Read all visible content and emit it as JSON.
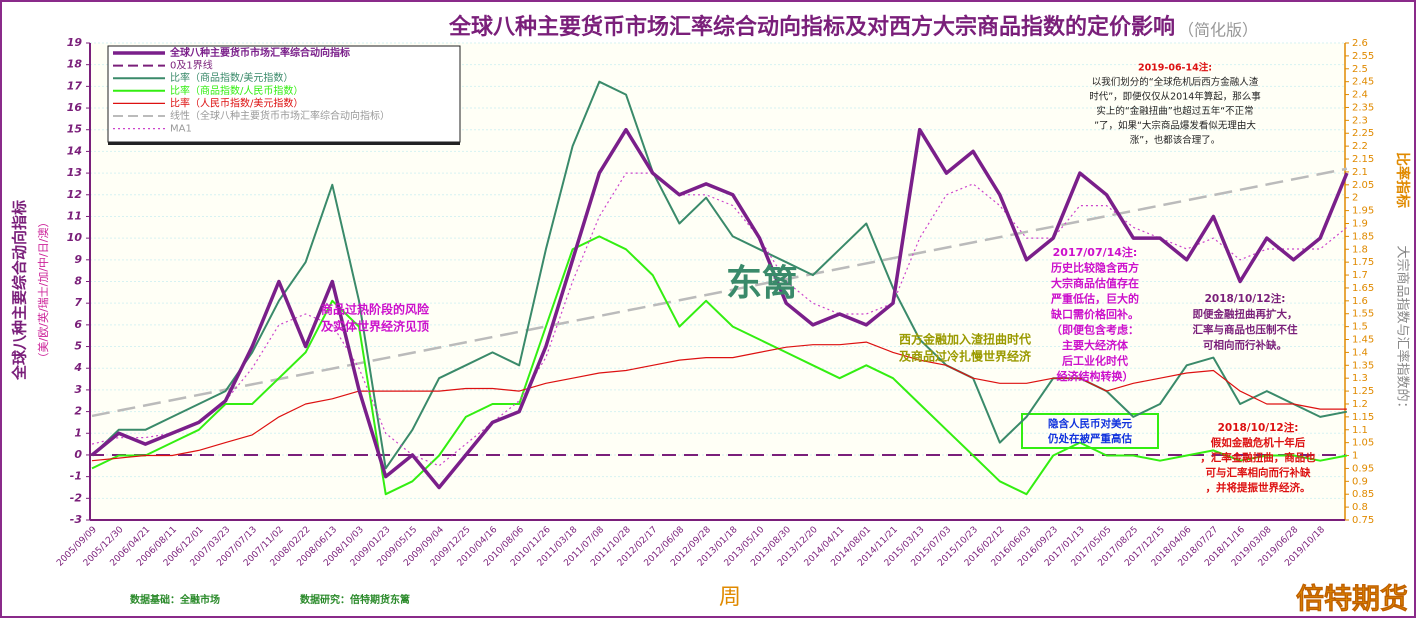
{
  "chart_data": {
    "type": "line",
    "title": "全球八种主要货币市场汇率综合动向指标及对西方大宗商品指数的定价影响",
    "subtitle": "（简化版）",
    "y_label": "全球八种主要综合动向指标",
    "y_sublabel": "（美/欧/英/瑞士/加/中/日/澳）",
    "y2_label": "大宗商品指数与汇率指数的：",
    "y2_label_emphasis": "比率指标",
    "x_label": "周",
    "categories": [
      "2005/09/09",
      "2005/12/30",
      "2006/04/21",
      "2006/08/11",
      "2006/12/01",
      "2007/03/23",
      "2007/07/13",
      "2007/11/02",
      "2008/02/22",
      "2008/06/13",
      "2008/10/03",
      "2009/01/23",
      "2009/05/15",
      "2009/09/04",
      "2009/12/25",
      "2010/04/16",
      "2010/08/06",
      "2010/11/26",
      "2011/03/18",
      "2011/07/08",
      "2011/10/28",
      "2012/02/17",
      "2012/06/08",
      "2012/09/28",
      "2013/01/18",
      "2013/05/10",
      "2013/08/30",
      "2013/12/20",
      "2014/04/11",
      "2014/08/01",
      "2014/11/21",
      "2015/03/13",
      "2015/07/03",
      "2015/10/23",
      "2016/02/12",
      "2016/06/03",
      "2016/09/23",
      "2017/01/13",
      "2017/05/05",
      "2017/08/25",
      "2017/12/15",
      "2018/04/06",
      "2018/07/27",
      "2018/11/16",
      "2019/03/08",
      "2019/06/28",
      "2019/10/18",
      null
    ],
    "series": [
      {
        "name": "全球八种主要货币市场汇率综合动向指标",
        "color": "#7a1f8a",
        "width": 3.5,
        "axis": "y",
        "values": [
          0,
          1,
          0.5,
          1,
          1.5,
          2.5,
          5,
          8,
          5,
          8,
          3,
          -1,
          0,
          -1.5,
          0,
          1.5,
          2,
          5,
          9,
          13,
          15,
          13,
          12,
          12.5,
          12,
          10,
          7,
          6,
          6.5,
          6,
          7,
          15,
          13,
          14,
          12,
          9,
          10,
          13,
          12,
          10,
          10,
          9,
          11,
          8,
          10,
          9,
          10,
          13
        ]
      },
      {
        "name": "比率（商品指数/美元指数）",
        "color": "#3a8a6a",
        "width": 2,
        "axis": "y2",
        "values": [
          1.0,
          1.1,
          1.1,
          1.15,
          1.2,
          1.25,
          1.4,
          1.6,
          1.75,
          2.05,
          1.6,
          0.95,
          1.1,
          1.3,
          1.35,
          1.4,
          1.35,
          1.8,
          2.2,
          2.45,
          2.4,
          2.1,
          1.9,
          2.0,
          1.85,
          1.8,
          1.75,
          1.7,
          1.8,
          1.9,
          1.65,
          1.45,
          1.35,
          1.3,
          1.05,
          1.15,
          1.3,
          1.3,
          1.25,
          1.15,
          1.2,
          1.35,
          1.38,
          1.2,
          1.25,
          1.2,
          1.15,
          1.17
        ]
      },
      {
        "name": "比率（商品指数/人民币指数）",
        "color": "#33ee11",
        "width": 2,
        "axis": "y2",
        "values": [
          0.95,
          1.0,
          1.0,
          1.05,
          1.1,
          1.2,
          1.2,
          1.3,
          1.4,
          1.6,
          1.5,
          0.85,
          0.9,
          1.0,
          1.15,
          1.2,
          1.2,
          1.5,
          1.8,
          1.85,
          1.8,
          1.7,
          1.5,
          1.6,
          1.5,
          1.45,
          1.4,
          1.35,
          1.3,
          1.35,
          1.3,
          1.2,
          1.1,
          1.0,
          0.9,
          0.85,
          1.0,
          1.05,
          1.0,
          1.0,
          0.98,
          1.0,
          1.02,
          0.98,
          1.0,
          1.0,
          0.98,
          1.0
        ]
      },
      {
        "name": "比率（人民币指数/美元指数）",
        "color": "#dd1111",
        "width": 1.2,
        "axis": "y2",
        "values": [
          0.98,
          0.99,
          1.0,
          1.0,
          1.02,
          1.05,
          1.08,
          1.15,
          1.2,
          1.22,
          1.25,
          1.25,
          1.25,
          1.25,
          1.26,
          1.26,
          1.25,
          1.28,
          1.3,
          1.32,
          1.33,
          1.35,
          1.37,
          1.38,
          1.38,
          1.4,
          1.42,
          1.43,
          1.43,
          1.44,
          1.4,
          1.37,
          1.35,
          1.3,
          1.28,
          1.28,
          1.3,
          1.3,
          1.25,
          1.28,
          1.3,
          1.32,
          1.33,
          1.25,
          1.2,
          1.2,
          1.18,
          1.18
        ]
      },
      {
        "name": "MA1",
        "color": "#cc44cc",
        "width": 1.2,
        "dash": "2 3",
        "axis": "y",
        "values": [
          0.5,
          0.8,
          0.8,
          1,
          1.5,
          2.5,
          4,
          6,
          6.5,
          6,
          4,
          1,
          0,
          -0.5,
          0.5,
          1.5,
          2.5,
          4.5,
          8,
          11,
          13,
          13,
          12,
          12,
          11.5,
          10,
          8,
          7,
          6.5,
          6.5,
          7,
          10,
          12,
          12.5,
          11.5,
          10,
          10,
          11.5,
          11.5,
          10.5,
          10,
          9.5,
          10,
          9,
          9.5,
          9.5,
          9.5,
          10.5
        ]
      }
    ],
    "reference_line": {
      "name": "0及1界线",
      "value": 0,
      "color": "#7a1f7a"
    },
    "trendline": {
      "name": "线性（全球八种主要货币市场汇率综合动向指标）",
      "values": [
        1.8,
        13.2
      ],
      "color": "#bbbbbb"
    },
    "ylim": [
      -3,
      19
    ],
    "yticks": [
      -3,
      -2,
      -1,
      0,
      1,
      2,
      3,
      4,
      5,
      6,
      7,
      8,
      9,
      10,
      11,
      12,
      13,
      14,
      15,
      16,
      17,
      18,
      19
    ],
    "y2lim": [
      0.75,
      2.6
    ],
    "y2ticks": [
      0.75,
      0.8,
      0.85,
      0.9,
      0.95,
      1,
      1.05,
      1.1,
      1.15,
      1.2,
      1.25,
      1.3,
      1.35,
      1.4,
      1.45,
      1.5,
      1.55,
      1.6,
      1.65,
      1.7,
      1.75,
      1.8,
      1.85,
      1.9,
      1.95,
      2,
      2.05,
      2.1,
      2.15,
      2.2,
      2.25,
      2.3,
      2.35,
      2.4,
      2.45,
      2.5,
      2.55,
      2.6
    ],
    "grid": true,
    "annotations": [
      {
        "lines": [
          "2019-06-14注:",
          "以我们划分的“全球危机后西方金融人渣",
          "时代”，即便仅仅从2014年算起，那么事",
          "实上的“金融扭曲”也超过五年“不正常",
          "”了，如果“大宗商品爆发看似无理由大",
          "涨”，也都该合理了。"
        ]
      },
      {
        "lines": [
          "东篱"
        ]
      },
      {
        "lines": [
          "2017/07/14注:",
          "历史比较隐含西方",
          "大宗商品估值存在",
          "严重低估，巨大的",
          "缺口需价格回补。",
          "（即便包含考虑：",
          "主要大经济体",
          "后工业化时代",
          "经济结构转换）"
        ]
      },
      {
        "lines": [
          "2018/10/12注:",
          "即便金融扭曲再扩大，",
          "汇率与商品也压制不住",
          "可相向而行补缺。"
        ]
      },
      {
        "lines": [
          "隐含人民币对美元",
          "仍处在被严重高估"
        ]
      },
      {
        "lines": [
          "2018/10/12注:",
          "假如金融危机十年后",
          "，汇率金融扭曲，商品也",
          "可与汇率相向而行补缺",
          "，并将提振世界经济。"
        ]
      },
      {
        "lines": [
          "商品过热阶段的风险",
          "及实体世界经济见顶"
        ]
      },
      {
        "lines": [
          "西方金融加入渣扭曲时代",
          "及商品过冷扎慢世界经济"
        ]
      }
    ],
    "footer": {
      "source": "数据基础：全融市场",
      "research": "数据研究：倍特期货东篱",
      "brand": "倍特期货"
    }
  }
}
